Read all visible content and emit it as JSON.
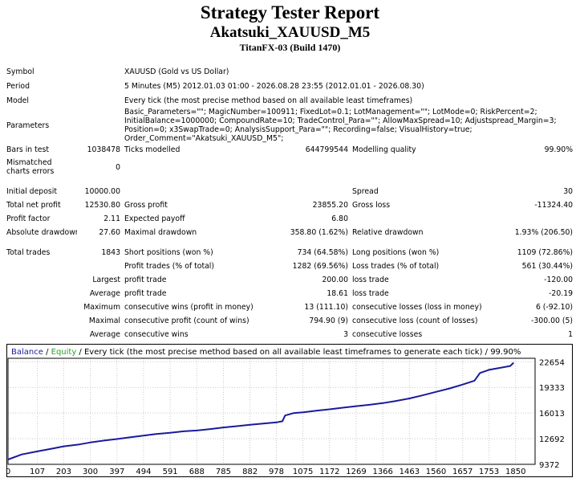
{
  "header": {
    "title": "Strategy Tester Report",
    "expert": "Akatsuki_XAUUSD_M5",
    "build": "TitanFX-03 (Build 1470)"
  },
  "settings": {
    "symbol_label": "Symbol",
    "symbol": "XAUUSD (Gold vs US Dollar)",
    "period_label": "Period",
    "period": "5 Minutes (M5) 2012.01.03 01:00 - 2026.08.28 23:55 (2012.01.01 - 2026.08.30)",
    "model_label": "Model",
    "model": "Every tick (the most precise method based on all available least timeframes)",
    "parameters_label": "Parameters",
    "parameters": "Basic_Parameters=\"\"; MagicNumber=100911; FixedLot=0.1; LotManagement=\"\"; LotMode=0; RiskPercent=2; InitialBalance=1000000; CompoundRate=10; TradeControl_Para=\"\"; AllowMaxSpread=10; Adjustspread_Margin=3; Position=0; x3SwapTrade=0; AnalysisSupport_Para=\"\"; Recording=false; VisualHistory=true; Order_Comment=\"Akatsuki_XAUUSD_M5\";"
  },
  "stats": {
    "bars_label": "Bars in test",
    "bars": "1038478",
    "ticks_label": "Ticks modelled",
    "ticks": "644799544",
    "quality_label": "Modelling quality",
    "quality": "99.90%",
    "mismatch_label": "Mismatched charts errors",
    "mismatch": "0",
    "deposit_label": "Initial deposit",
    "deposit": "10000.00",
    "spread_label": "Spread",
    "spread": "30",
    "net_label": "Total net profit",
    "net": "12530.80",
    "gross_profit_label": "Gross profit",
    "gross_profit": "23855.20",
    "gross_loss_label": "Gross loss",
    "gross_loss": "-11324.40",
    "pf_label": "Profit factor",
    "pf": "2.11",
    "payoff_label": "Expected payoff",
    "payoff": "6.80",
    "abs_dd_label": "Absolute drawdown",
    "abs_dd": "27.60",
    "max_dd_label": "Maximal drawdown",
    "max_dd": "358.80 (1.62%)",
    "rel_dd_label": "Relative drawdown",
    "rel_dd": "1.93% (206.50)",
    "trades_label": "Total trades",
    "trades": "1843",
    "short_label": "Short positions (won %)",
    "short": "734 (64.58%)",
    "long_label": "Long positions (won %)",
    "long": "1109 (72.86%)",
    "profit_trades_label": "Profit trades (% of total)",
    "profit_trades": "1282 (69.56%)",
    "loss_trades_label": "Loss trades (% of total)",
    "loss_trades": "561 (30.44%)",
    "largest_label": "Largest",
    "largest_profit_label": "profit trade",
    "largest_profit": "200.00",
    "largest_loss_label": "loss trade",
    "largest_loss": "-120.00",
    "average_label": "Average",
    "avg_profit_label": "profit trade",
    "avg_profit": "18.61",
    "avg_loss_label": "loss trade",
    "avg_loss": "-20.19",
    "maximum_label": "Maximum",
    "max_wins_label": "consecutive wins (profit in money)",
    "max_wins": "13 (111.10)",
    "max_losses_label": "consecutive losses (loss in money)",
    "max_losses": "6 (-92.10)",
    "maximal_label": "Maximal",
    "max_profit_label": "consecutive profit (count of wins)",
    "max_profit": "794.90 (9)",
    "max_loss_label": "consecutive loss (count of losses)",
    "max_loss": "-300.00 (5)",
    "average2_label": "Average",
    "avg_wins_label": "consecutive wins",
    "avg_wins": "3",
    "avg_losses_label": "consecutive losses",
    "avg_losses": "1"
  },
  "chart_legend": {
    "balance": "Balance",
    "sep1": " / ",
    "equity": "Equity",
    "rest": " / Every tick (the most precise method based on all available least timeframes to generate each tick) / 99.90%"
  },
  "colors": {
    "balance": "#1a1a9e",
    "equity": "#2aa02a",
    "grid": "#c8c8c8",
    "frame": "#000000"
  },
  "chart_data": {
    "type": "line",
    "xlim": [
      0,
      1921
    ],
    "ylim": [
      9372,
      23100
    ],
    "x_ticks": [
      0,
      107,
      203,
      300,
      397,
      494,
      591,
      688,
      785,
      882,
      978,
      1075,
      1172,
      1269,
      1366,
      1463,
      1560,
      1657,
      1753,
      1850
    ],
    "y_ticks": [
      9372,
      12692,
      16013,
      19333,
      22654
    ],
    "series": [
      {
        "name": "Balance",
        "x": [
          0,
          50,
          107,
          160,
          203,
          260,
          300,
          350,
          397,
          450,
          494,
          540,
          591,
          640,
          688,
          740,
          785,
          830,
          882,
          930,
          978,
          1000,
          1010,
          1040,
          1075,
          1120,
          1172,
          1220,
          1269,
          1320,
          1366,
          1410,
          1463,
          1510,
          1560,
          1610,
          1657,
          1700,
          1720,
          1753,
          1800,
          1830,
          1843
        ],
        "values": [
          10000,
          10650,
          11050,
          11400,
          11700,
          11950,
          12200,
          12450,
          12650,
          12900,
          13100,
          13300,
          13450,
          13650,
          13750,
          13950,
          14150,
          14300,
          14500,
          14650,
          14800,
          14950,
          15700,
          16000,
          16100,
          16300,
          16500,
          16700,
          16900,
          17100,
          17300,
          17550,
          17900,
          18300,
          18750,
          19200,
          19700,
          20200,
          21200,
          21600,
          21900,
          22100,
          22530
        ]
      }
    ]
  }
}
